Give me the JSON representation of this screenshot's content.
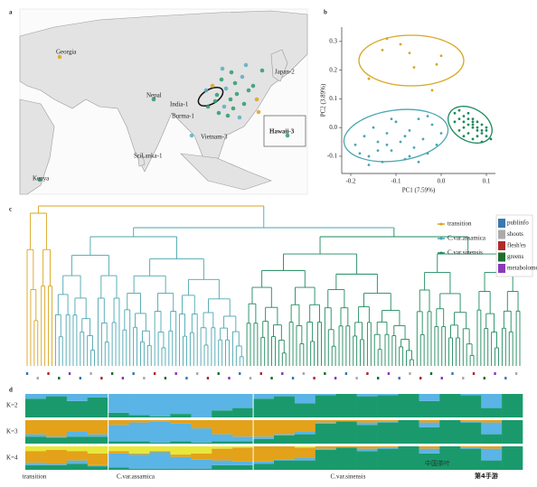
{
  "panel_labels": [
    "a",
    "b",
    "c",
    "d"
  ],
  "map": {
    "labels": [
      "Georgia",
      "Nepal",
      "India-1",
      "Burma-1",
      "Vietnam-3",
      "SriLanka-1",
      "Kenya",
      "Japan-2",
      "Hawaii-3"
    ]
  },
  "tree": {
    "legend": [
      "transition",
      "C.var.assamica",
      "C.var.sinensis"
    ],
    "tissue_legend": [
      "publinfo",
      "shoots",
      "flesh'es",
      "greens",
      "metabolome"
    ]
  },
  "groups": [
    "transition",
    "C.var.assamica",
    "C.var.sinensis"
  ],
  "watermark": [
    "中国茶叶",
    "第4手游"
  ],
  "chart_data": [
    {
      "type": "scatter",
      "x_label": "PC1 (7.59%)",
      "y_label": "PC2 (3.89%)",
      "xlim": [
        -0.22,
        0.12
      ],
      "ylim": [
        -0.16,
        0.35
      ],
      "xticks": [
        -0.2,
        -0.1,
        {
          "value": 0,
          "label": "0.0"
        },
        0.1
      ],
      "yticks": [
        -0.1,
        {
          "value": 0,
          "label": "0.0"
        },
        0.1,
        0.2,
        0.3
      ],
      "series": [
        {
          "color": "#d9a520",
          "x": [
            -0.12,
            -0.13,
            -0.07,
            -0.01,
            0.0,
            -0.06,
            -0.16,
            -0.02,
            -0.09
          ],
          "y": [
            0.31,
            0.27,
            0.26,
            0.22,
            0.25,
            0.21,
            0.17,
            0.13,
            0.29
          ]
        },
        {
          "color": "#4aa6b0",
          "x": [
            -0.19,
            -0.17,
            -0.16,
            -0.15,
            -0.14,
            -0.13,
            -0.12,
            -0.11,
            -0.1,
            -0.09,
            -0.08,
            -0.07,
            -0.06,
            -0.05,
            -0.04,
            -0.03,
            -0.02,
            -0.01,
            0.0,
            -0.18,
            -0.14,
            -0.11,
            -0.08,
            -0.05,
            -0.03,
            -0.12,
            -0.07,
            -0.16
          ],
          "y": [
            -0.06,
            -0.03,
            -0.1,
            0.0,
            -0.05,
            -0.12,
            -0.02,
            -0.08,
            0.02,
            -0.05,
            -0.11,
            -0.01,
            -0.07,
            0.03,
            -0.04,
            -0.09,
            0.01,
            -0.06,
            -0.02,
            -0.09,
            -0.08,
            0.03,
            -0.03,
            -0.12,
            0.04,
            -0.06,
            -0.1,
            -0.13
          ]
        },
        {
          "color": "#1e8a5e",
          "x": [
            0.03,
            0.04,
            0.05,
            0.06,
            0.07,
            0.08,
            0.09,
            0.1,
            0.11,
            0.05,
            0.06,
            0.07,
            0.08,
            0.09,
            0.04,
            0.06,
            0.08,
            0.1,
            0.07,
            0.05,
            0.09,
            0.06,
            0.08,
            0.07,
            0.03,
            0.1,
            0.04,
            0.09,
            0.05,
            0.07
          ],
          "y": [
            0.05,
            0.03,
            0.02,
            0.01,
            0.0,
            -0.01,
            -0.02,
            -0.03,
            -0.04,
            0.04,
            0.03,
            0.02,
            0.0,
            -0.01,
            0.06,
            -0.02,
            0.02,
            -0.01,
            -0.04,
            0.0,
            0.01,
            0.05,
            -0.03,
            0.03,
            0.02,
            0.0,
            -0.01,
            -0.05,
            -0.03,
            0.01
          ]
        }
      ]
    },
    {
      "type": "stacked-bar",
      "title": "K=2",
      "ylim": [
        0,
        100
      ],
      "series": [
        {
          "color": "#1a9a6c",
          "values": [
            80,
            90,
            70,
            85,
            20,
            10,
            5,
            15,
            0,
            30,
            40,
            80,
            90,
            60,
            95,
            100,
            90,
            95,
            100,
            70,
            100,
            95,
            40,
            100
          ]
        },
        {
          "color": "#5ab4e5",
          "values": [
            20,
            10,
            30,
            15,
            80,
            90,
            95,
            85,
            100,
            70,
            60,
            20,
            10,
            40,
            5,
            0,
            10,
            5,
            0,
            30,
            0,
            5,
            60,
            0
          ]
        }
      ]
    },
    {
      "type": "stacked-bar",
      "title": "K=3",
      "ylim": [
        0,
        100
      ],
      "series": [
        {
          "color": "#1a9a6c",
          "values": [
            30,
            25,
            30,
            30,
            10,
            10,
            5,
            10,
            5,
            10,
            10,
            20,
            35,
            40,
            85,
            95,
            80,
            90,
            100,
            70,
            100,
            90,
            40,
            100
          ]
        },
        {
          "color": "#5ab4e5",
          "values": [
            10,
            5,
            20,
            10,
            70,
            80,
            90,
            75,
            60,
            30,
            20,
            10,
            5,
            10,
            5,
            0,
            10,
            5,
            0,
            20,
            0,
            5,
            50,
            0
          ]
        },
        {
          "color": "#e3a21a",
          "values": [
            60,
            70,
            50,
            60,
            20,
            10,
            5,
            15,
            35,
            60,
            70,
            70,
            60,
            50,
            10,
            5,
            10,
            5,
            0,
            10,
            0,
            5,
            10,
            0
          ]
        }
      ]
    },
    {
      "type": "stacked-bar",
      "title": "K=4",
      "ylim": [
        0,
        100
      ],
      "series": [
        {
          "color": "#1a9a6c",
          "values": [
            20,
            20,
            25,
            15,
            10,
            5,
            5,
            5,
            5,
            20,
            20,
            25,
            40,
            40,
            85,
            95,
            80,
            90,
            100,
            70,
            100,
            90,
            40,
            100
          ]
        },
        {
          "color": "#5ab4e5",
          "values": [
            10,
            5,
            15,
            5,
            60,
            60,
            70,
            50,
            40,
            20,
            15,
            10,
            5,
            10,
            5,
            0,
            10,
            5,
            0,
            20,
            0,
            5,
            50,
            0
          ]
        },
        {
          "color": "#e3a21a",
          "values": [
            50,
            60,
            40,
            50,
            10,
            5,
            5,
            10,
            25,
            50,
            60,
            65,
            55,
            45,
            10,
            5,
            10,
            5,
            0,
            10,
            0,
            5,
            10,
            0
          ]
        },
        {
          "color": "#e8e83a",
          "values": [
            20,
            15,
            20,
            30,
            20,
            30,
            20,
            35,
            30,
            10,
            5,
            0,
            0,
            5,
            0,
            0,
            0,
            0,
            0,
            0,
            0,
            0,
            0,
            0
          ]
        }
      ]
    }
  ]
}
